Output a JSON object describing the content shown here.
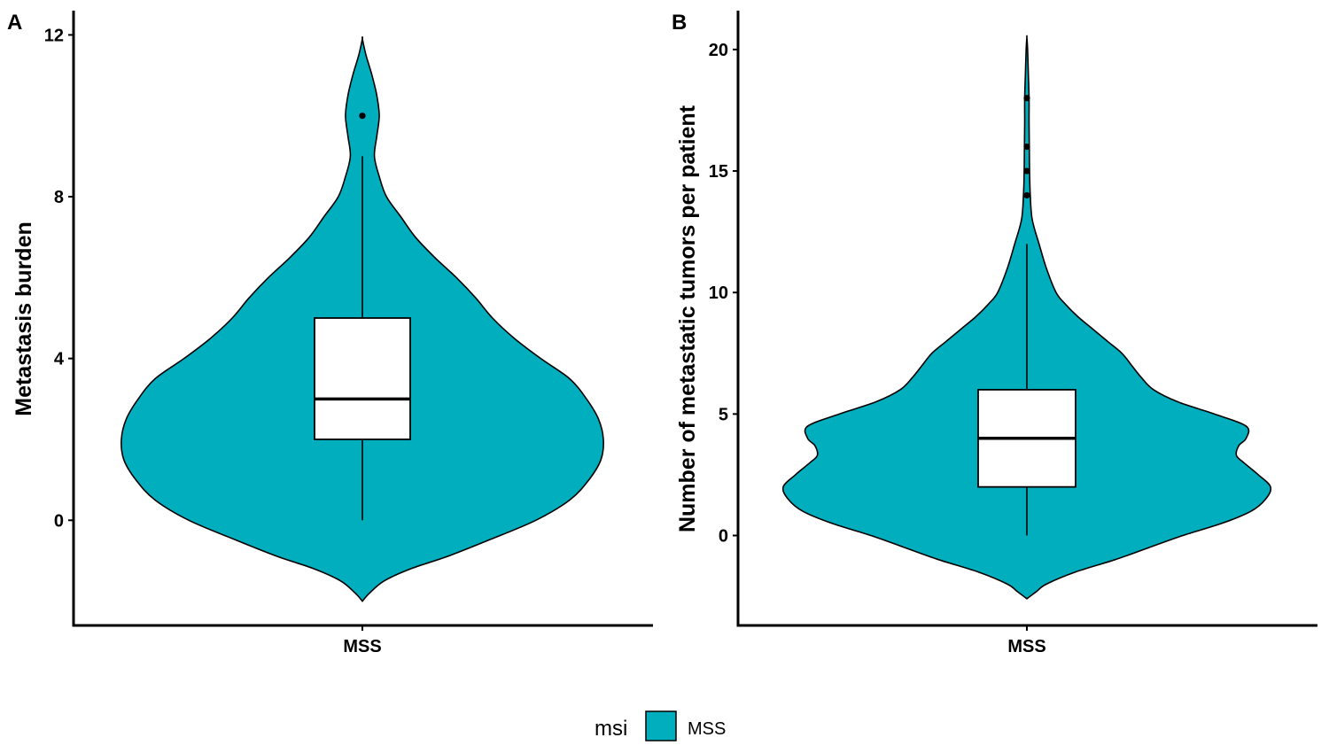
{
  "chart_data": [
    {
      "panel": "A",
      "type": "violin",
      "ylabel": "Metastasis burden",
      "xlabel": "",
      "categories": [
        "MSS"
      ],
      "ylim": [
        -2.6,
        12.6
      ],
      "yticks": [
        0,
        4,
        8,
        12
      ],
      "density": [
        [
          -2.0,
          0.0
        ],
        [
          -1.8,
          0.03
        ],
        [
          -1.5,
          0.09
        ],
        [
          -1.2,
          0.2
        ],
        [
          -0.9,
          0.35
        ],
        [
          -0.5,
          0.52
        ],
        [
          0.0,
          0.72
        ],
        [
          0.5,
          0.86
        ],
        [
          1.0,
          0.94
        ],
        [
          1.5,
          0.99
        ],
        [
          2.0,
          1.0
        ],
        [
          2.5,
          0.98
        ],
        [
          3.0,
          0.93
        ],
        [
          3.5,
          0.86
        ],
        [
          4.0,
          0.74
        ],
        [
          4.5,
          0.63
        ],
        [
          5.0,
          0.54
        ],
        [
          5.5,
          0.47
        ],
        [
          6.0,
          0.39
        ],
        [
          6.5,
          0.3
        ],
        [
          7.0,
          0.22
        ],
        [
          7.5,
          0.16
        ],
        [
          8.0,
          0.1
        ],
        [
          8.5,
          0.07
        ],
        [
          9.0,
          0.05
        ],
        [
          9.5,
          0.06
        ],
        [
          10.0,
          0.07
        ],
        [
          10.5,
          0.06
        ],
        [
          11.0,
          0.04
        ],
        [
          11.5,
          0.015
        ],
        [
          11.9,
          0.0
        ]
      ],
      "box": {
        "min": 0,
        "q1": 2,
        "median": 3,
        "q3": 5,
        "max": 9
      },
      "outliers": [
        10
      ]
    },
    {
      "panel": "B",
      "type": "violin",
      "ylabel": "Number of metastatic tumors per patient",
      "xlabel": "",
      "categories": [
        "MSS"
      ],
      "ylim": [
        -3.7,
        21.6
      ],
      "yticks": [
        0,
        5,
        10,
        15,
        20
      ],
      "density": [
        [
          -2.6,
          0.0
        ],
        [
          -2.3,
          0.04
        ],
        [
          -2.0,
          0.08
        ],
        [
          -1.5,
          0.2
        ],
        [
          -1.0,
          0.36
        ],
        [
          -0.5,
          0.5
        ],
        [
          0.0,
          0.64
        ],
        [
          0.5,
          0.8
        ],
        [
          1.0,
          0.92
        ],
        [
          1.5,
          0.98
        ],
        [
          2.0,
          1.0
        ],
        [
          2.5,
          0.95
        ],
        [
          3.0,
          0.89
        ],
        [
          3.3,
          0.86
        ],
        [
          3.7,
          0.87
        ],
        [
          4.0,
          0.9
        ],
        [
          4.5,
          0.9
        ],
        [
          5.0,
          0.77
        ],
        [
          5.5,
          0.62
        ],
        [
          6.0,
          0.52
        ],
        [
          6.5,
          0.47
        ],
        [
          7.0,
          0.43
        ],
        [
          7.5,
          0.39
        ],
        [
          8.0,
          0.33
        ],
        [
          8.5,
          0.27
        ],
        [
          9.0,
          0.21
        ],
        [
          9.5,
          0.16
        ],
        [
          10.0,
          0.12
        ],
        [
          11.0,
          0.08
        ],
        [
          12.0,
          0.05
        ],
        [
          13.0,
          0.022
        ],
        [
          14.0,
          0.014
        ],
        [
          15.0,
          0.011
        ],
        [
          16.0,
          0.01
        ],
        [
          17.0,
          0.009
        ],
        [
          18.0,
          0.009
        ],
        [
          19.0,
          0.006
        ],
        [
          20.0,
          0.003
        ],
        [
          20.5,
          0.0
        ]
      ],
      "box": {
        "min": 0,
        "q1": 2,
        "median": 4,
        "q3": 6,
        "max": 12
      },
      "outliers": [
        14,
        15,
        16,
        18
      ]
    }
  ],
  "legend": {
    "title": "msi",
    "items": [
      {
        "label": "MSS",
        "color": "#00AEBD"
      }
    ]
  },
  "colors": {
    "violin_fill": "#00AEBD",
    "box_fill": "#FFFFFF",
    "stroke": "#000000"
  }
}
